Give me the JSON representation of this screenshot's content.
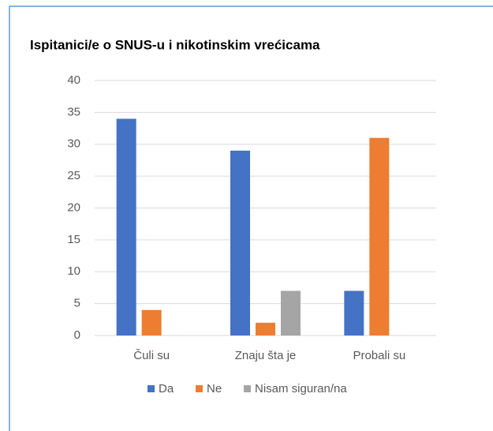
{
  "chart_data": {
    "type": "bar",
    "title": "Ispitanici/e o SNUS-u i nikotinskim vrećicama",
    "categories": [
      "Čuli su",
      "Znaju šta je",
      "Probali su"
    ],
    "series": [
      {
        "name": "Da",
        "color": "#4472c4",
        "values": [
          34,
          29,
          7
        ]
      },
      {
        "name": "Ne",
        "color": "#ed7d31",
        "values": [
          4,
          2,
          31
        ]
      },
      {
        "name": "Nisam siguran/na",
        "color": "#a5a5a5",
        "values": [
          0,
          7,
          0
        ]
      }
    ],
    "ylim": [
      0,
      40
    ],
    "yticks": [
      0,
      5,
      10,
      15,
      20,
      25,
      30,
      35,
      40
    ],
    "grid": true,
    "legend": "bottom"
  }
}
